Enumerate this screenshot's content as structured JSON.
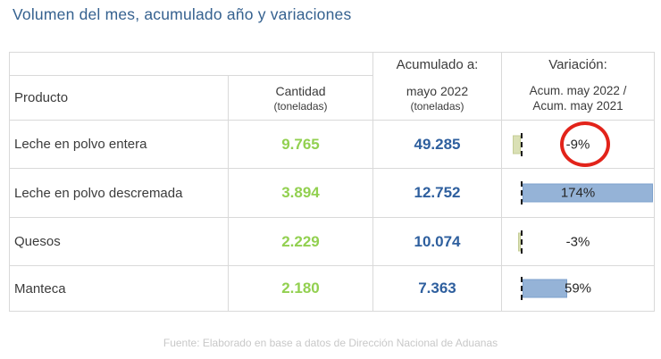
{
  "title": "Volumen del mes, acumulado año y variaciones",
  "table": {
    "header": {
      "producto": "Producto",
      "cantidad_line1": "Cantidad",
      "cantidad_line2": "(toneladas)",
      "acumulado_label": "Acumulado a:",
      "acumulado_line1": "mayo 2022",
      "acumulado_line2": "(toneladas)",
      "variacion_label": "Variación:",
      "variacion_line1": "Acum. may 2022 /",
      "variacion_line2": "Acum. may 2021"
    },
    "rows": [
      {
        "producto": "Leche en polvo entera",
        "cantidad": "9.765",
        "acumulado": "49.285",
        "variacion": "-9%",
        "variacion_value": -9,
        "circled": true
      },
      {
        "producto": "Leche en polvo descremada",
        "cantidad": "3.894",
        "acumulado": "12.752",
        "variacion": "174%",
        "variacion_value": 174,
        "circled": false
      },
      {
        "producto": "Quesos",
        "cantidad": "2.229",
        "acumulado": "10.074",
        "variacion": "-3%",
        "variacion_value": -3,
        "circled": false
      },
      {
        "producto": "Manteca",
        "cantidad": "2.180",
        "acumulado": "7.363",
        "variacion": "59%",
        "variacion_value": 59,
        "circled": false
      }
    ]
  },
  "footer": "Fuente: Elaborado en base a datos de Dirección Nacional de Aduanas",
  "colors": {
    "title_blue": "#35618f",
    "value_green": "#92d050",
    "value_blue": "#2e5f9e",
    "bar_positive": "#95b3d7",
    "bar_negative": "#dae0b5",
    "circle_red": "#e2231a",
    "grid_border": "#d9d9d9",
    "footer_gray": "#c8c8c8"
  },
  "chart_data": {
    "type": "table",
    "title": "Volumen del mes, acumulado año y variaciones",
    "columns": [
      "Producto",
      "Cantidad (toneladas)",
      "Acumulado a: mayo 2022 (toneladas)",
      "Variación: Acum. may 2022 / Acum. may 2021"
    ],
    "rows": [
      [
        "Leche en polvo entera",
        9765,
        49285,
        "-9%"
      ],
      [
        "Leche en polvo descremada",
        3894,
        12752,
        "174%"
      ],
      [
        "Quesos",
        2229,
        10074,
        "-3%"
      ],
      [
        "Manteca",
        2180,
        7363,
        "59%"
      ]
    ],
    "databar_series": {
      "name": "Variación % (Acum. may 2022 / Acum. may 2021)",
      "values": [
        -9,
        174,
        -3,
        59
      ],
      "positive_color": "#95b3d7",
      "negative_color": "#dae0b5",
      "annotation": "red ellipse highlighting the -9% value of Leche en polvo entera"
    },
    "source": "Fuente: Elaborado en base a datos de Dirección Nacional de Aduanas"
  }
}
